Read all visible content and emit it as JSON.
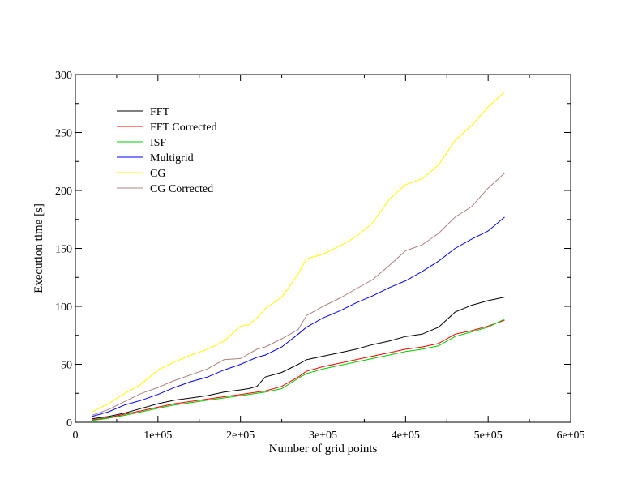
{
  "chart_data": {
    "type": "line",
    "title": "",
    "xlabel": "Number of grid points",
    "ylabel": "Execution time [s]",
    "xlim": [
      0,
      600000
    ],
    "ylim": [
      0,
      300
    ],
    "x_ticks": [
      {
        "value": 0,
        "label": "0"
      },
      {
        "value": 100000,
        "label": "1e+05"
      },
      {
        "value": 200000,
        "label": "2e+05"
      },
      {
        "value": 300000,
        "label": "3e+05"
      },
      {
        "value": 400000,
        "label": "4e+05"
      },
      {
        "value": 500000,
        "label": "5e+05"
      },
      {
        "value": 600000,
        "label": "6e+05"
      }
    ],
    "y_ticks": [
      {
        "value": 0,
        "label": "0"
      },
      {
        "value": 50,
        "label": "50"
      },
      {
        "value": 100,
        "label": "100"
      },
      {
        "value": 150,
        "label": "150"
      },
      {
        "value": 200,
        "label": "200"
      },
      {
        "value": 250,
        "label": "250"
      },
      {
        "value": 300,
        "label": "300"
      }
    ],
    "grid": false,
    "legend_position": "top-left",
    "x": [
      20000,
      40000,
      60000,
      80000,
      100000,
      120000,
      140000,
      160000,
      180000,
      200000,
      210000,
      220000,
      230000,
      250000,
      270000,
      280000,
      300000,
      320000,
      340000,
      360000,
      380000,
      400000,
      420000,
      440000,
      460000,
      480000,
      500000,
      520000
    ],
    "series": [
      {
        "name": "FFT",
        "color": "#000000",
        "values": [
          3,
          5,
          8,
          12,
          16,
          19,
          21,
          23,
          26,
          28,
          29,
          31,
          39,
          43,
          50,
          54,
          57,
          60,
          63,
          67,
          70,
          74,
          76,
          82,
          95,
          101,
          105,
          108
        ]
      },
      {
        "name": "FFT Corrected",
        "color": "#ff0000",
        "values": [
          2,
          4,
          7,
          10,
          13,
          16,
          18,
          20,
          22,
          24,
          25,
          26,
          27,
          31,
          39,
          44,
          48,
          51,
          54,
          57,
          60,
          63,
          65,
          68,
          76,
          79,
          83,
          88
        ]
      },
      {
        "name": "ISF",
        "color": "#00cc00",
        "values": [
          1.5,
          3.5,
          6,
          9,
          12,
          15,
          17,
          19,
          21,
          23,
          24,
          25,
          26,
          29,
          38,
          42,
          46,
          49,
          52,
          55,
          58,
          61,
          63,
          66,
          74,
          78,
          82,
          89
        ]
      },
      {
        "name": "Multigrid",
        "color": "#0000ff",
        "values": [
          5,
          9,
          15,
          19,
          24,
          30,
          35,
          39,
          45,
          50,
          53,
          56,
          58,
          65,
          76,
          82,
          90,
          96,
          103,
          109,
          116,
          122,
          130,
          139,
          150,
          158,
          165,
          177
        ]
      },
      {
        "name": "CG",
        "color": "#ffff00",
        "values": [
          9,
          16,
          25,
          33,
          45,
          52,
          58,
          63,
          70,
          83,
          84,
          90,
          98,
          108,
          128,
          141,
          145,
          152,
          160,
          172,
          192,
          205,
          210,
          222,
          243,
          256,
          272,
          285
        ]
      },
      {
        "name": "CG Corrected",
        "color": "#b08080",
        "values": [
          6,
          11,
          18,
          25,
          30,
          36,
          41,
          46,
          54,
          55,
          59,
          63,
          65,
          72,
          80,
          92,
          100,
          107,
          115,
          123,
          135,
          148,
          153,
          163,
          177,
          186,
          202,
          215
        ]
      }
    ]
  }
}
